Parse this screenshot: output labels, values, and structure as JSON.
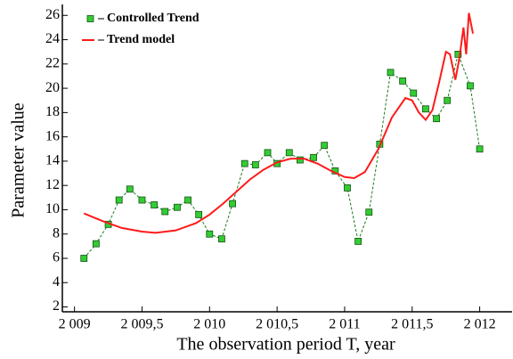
{
  "chart_data": {
    "type": "line",
    "x_label": "The observation period T, year",
    "y_label": "Parameter value",
    "xlim": [
      2008.91,
      2012.24
    ],
    "ylim": [
      1.6,
      26.9
    ],
    "xticks": [
      {
        "value": 2009,
        "label": "2 009"
      },
      {
        "value": 2009.5,
        "label": "2 009,5"
      },
      {
        "value": 2010,
        "label": "2 010"
      },
      {
        "value": 2010.5,
        "label": "2 010,5"
      },
      {
        "value": 2011,
        "label": "2 011"
      },
      {
        "value": 2011.5,
        "label": "2 011,5"
      },
      {
        "value": 2012,
        "label": "2 012"
      }
    ],
    "yticks": [
      2,
      4,
      6,
      8,
      10,
      12,
      14,
      16,
      18,
      20,
      22,
      24,
      26
    ],
    "legend": "top-left",
    "series": [
      {
        "name": "Controlled Trend",
        "color": "#1a7a1a",
        "marker_color": "#33cc33",
        "dashed": true,
        "markers": true,
        "x": [
          2009.07,
          2009.16,
          2009.25,
          2009.33,
          2009.41,
          2009.5,
          2009.59,
          2009.67,
          2009.76,
          2009.84,
          2009.92,
          2010.0,
          2010.09,
          2010.17,
          2010.26,
          2010.34,
          2010.43,
          2010.5,
          2010.59,
          2010.67,
          2010.77,
          2010.85,
          2010.93,
          2011.02,
          2011.1,
          2011.18,
          2011.26,
          2011.34,
          2011.43,
          2011.51,
          2011.6,
          2011.68,
          2011.76,
          2011.84,
          2011.93,
          2012.0
        ],
        "values": [
          6.0,
          7.2,
          8.8,
          10.8,
          11.7,
          10.8,
          10.4,
          9.85,
          10.2,
          10.8,
          9.6,
          8.0,
          7.6,
          10.5,
          13.8,
          13.7,
          14.7,
          13.8,
          14.7,
          14.1,
          14.3,
          15.3,
          13.2,
          11.8,
          7.4,
          9.8,
          15.4,
          21.3,
          20.6,
          19.6,
          18.3,
          17.5,
          19.0,
          22.8,
          20.2,
          15.0
        ]
      },
      {
        "name": "Trend model",
        "color": "#ff1a1a",
        "dashed": false,
        "markers": false,
        "x": [
          2009.07,
          2009.2,
          2009.35,
          2009.5,
          2009.6,
          2009.75,
          2009.9,
          2010.0,
          2010.1,
          2010.2,
          2010.3,
          2010.4,
          2010.5,
          2010.6,
          2010.7,
          2010.8,
          2010.9,
          2011.0,
          2011.07,
          2011.15,
          2011.25,
          2011.35,
          2011.45,
          2011.5,
          2011.55,
          2011.6,
          2011.65,
          2011.7,
          2011.75,
          2011.78,
          2011.82,
          2011.85,
          2011.88,
          2011.9,
          2011.92,
          2011.95
        ],
        "values": [
          9.7,
          9.1,
          8.5,
          8.2,
          8.1,
          8.3,
          8.9,
          9.6,
          10.5,
          11.5,
          12.5,
          13.3,
          13.9,
          14.2,
          14.2,
          13.8,
          13.2,
          12.7,
          12.6,
          13.1,
          15.0,
          17.6,
          19.2,
          19.0,
          18.0,
          17.4,
          18.2,
          20.5,
          23.0,
          22.8,
          20.7,
          22.5,
          25.0,
          22.8,
          26.2,
          24.5
        ]
      }
    ]
  }
}
